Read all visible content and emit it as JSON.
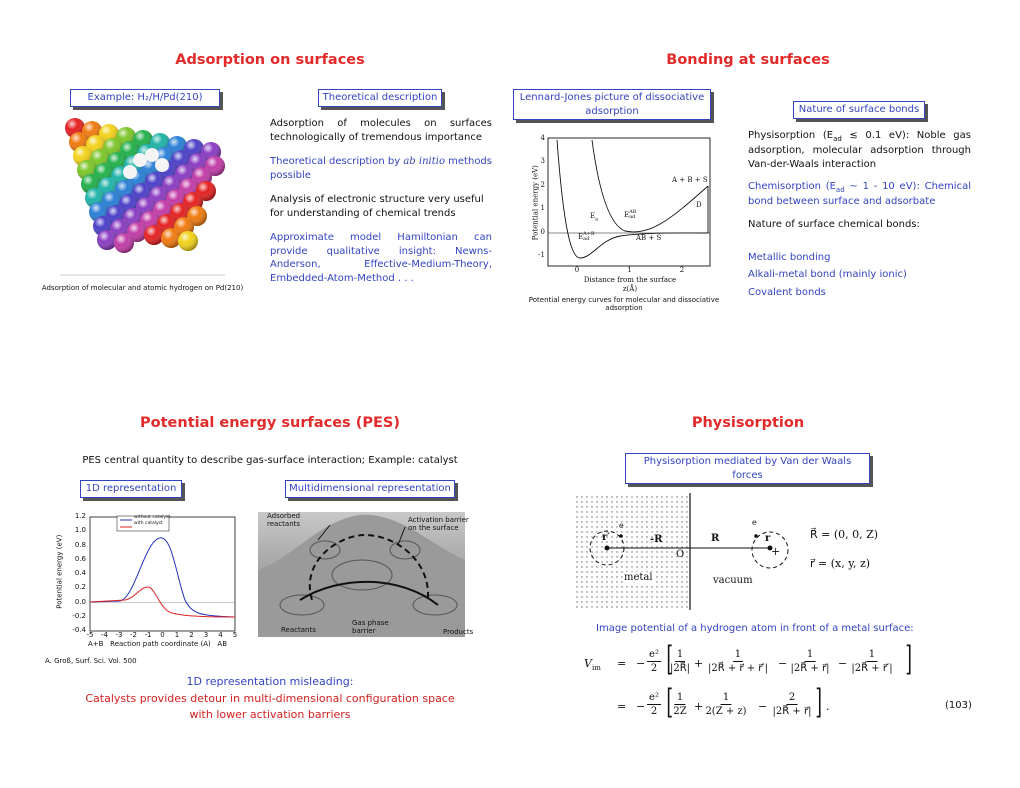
{
  "adsorption": {
    "title": "Adsorption on surfaces",
    "example_box": "Example: H₂/H/Pd(210)",
    "image_caption": "Adsorption of molecular and atomic hydrogen on Pd(210)",
    "theory_box": "Theoretical description",
    "paragraph_1": "Adsorption of molecules on surfaces technologically of tremendous importance",
    "paragraph_2": [
      "Theoretical description by ",
      "ab initio",
      " methods possible"
    ],
    "paragraph_3": "Analysis of electronic structure very useful for understanding of chemical trends",
    "paragraph_4": "Approximate model Hamiltonian can provide qualitative insight: Newns-Anderson, Effective-Medium-Theory, Embedded-Atom-Method . . ."
  },
  "bonding": {
    "title": "Bonding at surfaces",
    "figure_box": "Lennard-Jones picture of dissociative adsorption",
    "figure": {
      "y_label": "Potential energy (eV)",
      "x_label": "Distance from the surface z(Å)",
      "y_ticks": [
        "4",
        "3",
        "2",
        "1",
        "0",
        "-1"
      ],
      "x_ticks": [
        "0",
        "1",
        "2"
      ],
      "label_abs": "A + B + S",
      "label_d": "D",
      "label_ab_s": "AB + S",
      "barrier": {
        "base": "E",
        "sub": "a"
      },
      "molecular": {
        "base": "E",
        "sup": "AB",
        "sub": "ad"
      },
      "atomic": {
        "base": "E",
        "sup": "A+B",
        "sub": "ad"
      }
    },
    "figure_caption": "Potential energy curves for molecular and dissociative adsorption",
    "nature_box": "Nature of surface bonds",
    "physisorption": [
      "Physisorption (E",
      "ad",
      " ≲ 0.1 eV): Noble gas adsorption, molecular adsorption through Van-der-Waals interaction"
    ],
    "chemisorption": [
      "Chemisorption (E",
      "ad",
      " ∼ 1 - 10 eV): Chemical bond between surface and adsorbate"
    ],
    "nature_heading": "Nature of surface chemical bonds:",
    "bond_types": [
      "Metallic bonding",
      "Alkali-metal bond (mainly ionic)",
      "Covalent bonds"
    ]
  },
  "pes": {
    "title": "Potential energy surfaces (PES)",
    "intro": "PES central quantity to describe gas-surface interaction; Example: catalyst",
    "box_1d": "1D representation",
    "box_md": "Multidimensional representation",
    "plot": {
      "y_label": "Potential energy (eV)",
      "y_ticks": [
        "1.2",
        "1.0",
        "0.8",
        "0.6",
        "0.4",
        "0.2",
        "0.0",
        "-0.2",
        "-0.4"
      ],
      "x_ticks": [
        "-5",
        "-4",
        "-3",
        "-2",
        "-1",
        "0",
        "1",
        "2",
        "3",
        "4",
        "5"
      ],
      "x_label_left": "A+B",
      "x_label": "Reaction path coordinate (A)",
      "x_label_right": "AB",
      "legend": [
        "without catalyst",
        "with catalyst"
      ]
    },
    "surface_labels": {
      "adsorbed": "Adsorbed reactants",
      "activation": "Activation barrier on the surface",
      "gas_phase": "Gas phase barrier",
      "reactants": "Reactants",
      "products": "Products"
    },
    "reference": "A. Groß, Surf. Sci. Vol. 500",
    "conclusion": [
      "1D representation misleading:",
      "Catalysts provides detour in multi-dimensional configuration space",
      "with lower activation barriers"
    ]
  },
  "physisorption": {
    "title": "Physisorption",
    "box": "Physisorption mediated by Van der Waals forces",
    "diagram": {
      "metal": "metal",
      "vacuum": "vacuum",
      "e_left": "e",
      "r_left": "r′",
      "minus_r": "-R",
      "origin": "O",
      "r_vec": "R",
      "e_right": "e",
      "r_right": "r",
      "plus": "+"
    },
    "vectors": [
      "R⃗ = (0, 0, Z)",
      "r⃗ = (x, y, z)"
    ],
    "image_potential": "Image potential of a hydrogen atom in front of a metal surface:",
    "equation": {
      "lhs": "V",
      "lhs_sub": "im",
      "equals": "=",
      "minus": "−",
      "line_1": [
        {
          "numerator": "e²",
          "denominator": "2"
        },
        {
          "numerator": "1",
          "denominator": "|2R⃗|"
        },
        {
          "numerator": "1",
          "denominator": "|2R⃗ + r⃗ + r⃗′|"
        },
        {
          "numerator": "1",
          "denominator": "|2R⃗ + r⃗|"
        },
        {
          "numerator": "1",
          "denominator": "|2R⃗ + r⃗′|"
        }
      ],
      "line_1_ops": [
        "+",
        "−",
        "−"
      ],
      "line_2": [
        {
          "numerator": "e²",
          "denominator": "2"
        },
        {
          "numerator": "1",
          "denominator": "2Z"
        },
        {
          "numerator": "1",
          "denominator": "2(Z + z)"
        },
        {
          "numerator": "2",
          "denominator": "|2R⃗ + r⃗|"
        }
      ],
      "line_2_ops": [
        "+",
        "−"
      ],
      "end": ".",
      "number": "(103)"
    }
  }
}
